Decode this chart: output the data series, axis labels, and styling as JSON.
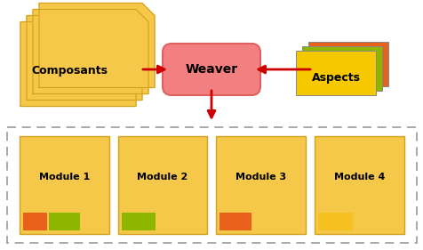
{
  "fig_width": 4.77,
  "fig_height": 2.81,
  "dpi": 100,
  "bg_color": "#ffffff",
  "composants_color": "#f5c84a",
  "composants_edge": "#d4a020",
  "weaver_color": "#f28080",
  "weaver_edge": "#e06060",
  "weaver_text": "Weaver",
  "composants_text": "Composants",
  "aspects_text": "Aspects",
  "aspects_colors": [
    "#e8611a",
    "#8db600",
    "#f5c800"
  ],
  "module_bg": "#f5c84a",
  "module_border": "#d4a020",
  "dashed_box_color": "#999999",
  "arrow_color": "#cc0000",
  "modules": [
    "Module 1",
    "Module 2",
    "Module 3",
    "Module 4"
  ]
}
